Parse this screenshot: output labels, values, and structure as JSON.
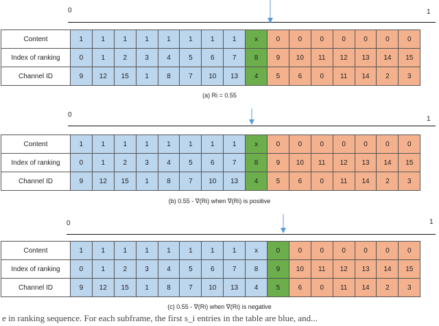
{
  "scale": {
    "start": "0",
    "end": "1"
  },
  "row_labels": [
    "Content",
    "Index of ranking",
    "Channel ID"
  ],
  "panels": [
    {
      "caption": "(a) Ri = 0.55",
      "marker_fraction": 0.55,
      "content": [
        "1",
        "1",
        "1",
        "1",
        "1",
        "1",
        "1",
        "1",
        "x",
        "0",
        "0",
        "0",
        "0",
        "0",
        "0",
        "0"
      ],
      "index": [
        "0",
        "1",
        "2",
        "3",
        "4",
        "5",
        "6",
        "7",
        "8",
        "9",
        "10",
        "11",
        "12",
        "13",
        "14",
        "15"
      ],
      "channel": [
        "9",
        "12",
        "15",
        "1",
        "8",
        "7",
        "10",
        "13",
        "4",
        "5",
        "6",
        "0",
        "11",
        "14",
        "2",
        "3"
      ],
      "green_col": 8
    },
    {
      "caption": "(b)  0.55 - ∇(Ri) when ∇(Ri) is positive",
      "marker_fraction": 0.5,
      "content": [
        "1",
        "1",
        "1",
        "1",
        "1",
        "1",
        "1",
        "1",
        "x",
        "0",
        "0",
        "0",
        "0",
        "0",
        "0",
        "0"
      ],
      "index": [
        "0",
        "1",
        "2",
        "3",
        "4",
        "5",
        "6",
        "7",
        "8",
        "9",
        "10",
        "11",
        "12",
        "13",
        "14",
        "15"
      ],
      "channel": [
        "9",
        "12",
        "15",
        "1",
        "8",
        "7",
        "10",
        "13",
        "4",
        "5",
        "6",
        "0",
        "11",
        "14",
        "2",
        "3"
      ],
      "green_col": 8
    },
    {
      "caption": "(c)  0.55 - ∇(Ri) when ∇(Ri) is negative",
      "marker_fraction": 0.587,
      "content": [
        "1",
        "1",
        "1",
        "1",
        "1",
        "1",
        "1",
        "1",
        "x",
        "0",
        "0",
        "0",
        "0",
        "0",
        "0",
        "0"
      ],
      "index": [
        "0",
        "1",
        "2",
        "3",
        "4",
        "5",
        "6",
        "7",
        "8",
        "9",
        "10",
        "11",
        "12",
        "13",
        "14",
        "15"
      ],
      "channel": [
        "9",
        "12",
        "15",
        "1",
        "8",
        "7",
        "10",
        "13",
        "4",
        "5",
        "6",
        "0",
        "11",
        "14",
        "2",
        "3"
      ],
      "green_col": 9
    }
  ],
  "bottom_text": "e in ranking sequence.  For each subframe, the first s_i entries in the table are blue, and...",
  "colors": {
    "blue": "#bcd6ee",
    "green": "#6cae4c",
    "orange": "#f4b18e",
    "marker": "#5b9bd5"
  }
}
